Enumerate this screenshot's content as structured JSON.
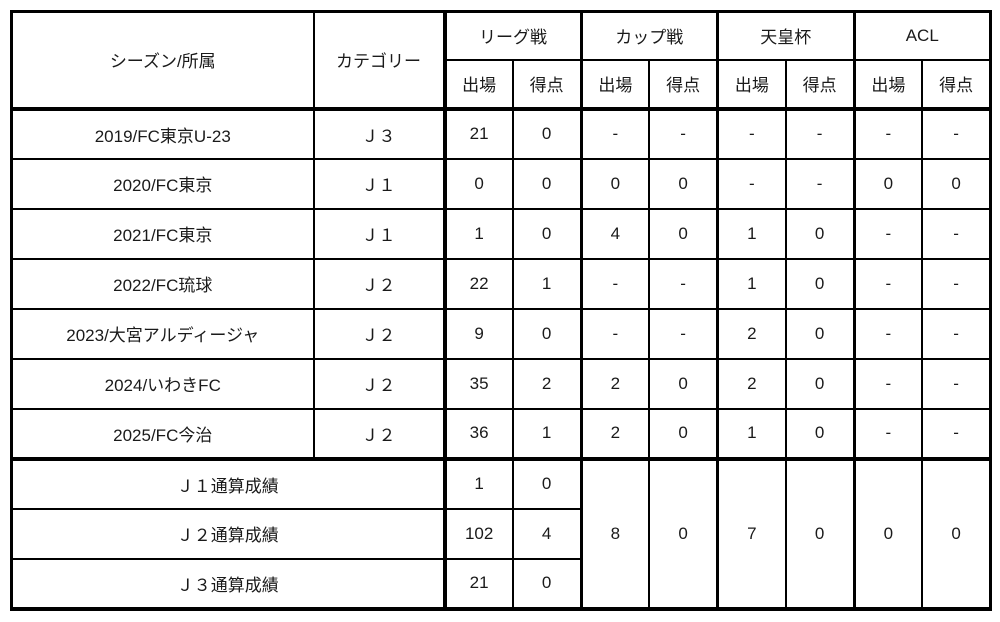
{
  "table": {
    "header": {
      "season_col": "シーズン/所属",
      "category_col": "カテゴリー",
      "groups": [
        "リーグ戦",
        "カップ戦",
        "天皇杯",
        "ACL"
      ],
      "apps": "出場",
      "goals": "得点"
    },
    "rows": [
      {
        "season": "2019/FC東京U-23",
        "category": "Ｊ３",
        "cells": [
          "21",
          "0",
          "-",
          "-",
          "-",
          "-",
          "-",
          "-"
        ]
      },
      {
        "season": "2020/FC東京",
        "category": "Ｊ１",
        "cells": [
          "0",
          "0",
          "0",
          "0",
          "-",
          "-",
          "0",
          "0"
        ]
      },
      {
        "season": "2021/FC東京",
        "category": "Ｊ１",
        "cells": [
          "1",
          "0",
          "4",
          "0",
          "1",
          "0",
          "-",
          "-"
        ]
      },
      {
        "season": "2022/FC琉球",
        "category": "Ｊ２",
        "cells": [
          "22",
          "1",
          "-",
          "-",
          "1",
          "0",
          "-",
          "-"
        ]
      },
      {
        "season": "2023/大宮アルディージャ",
        "category": "Ｊ２",
        "cells": [
          "9",
          "0",
          "-",
          "-",
          "2",
          "0",
          "-",
          "-"
        ]
      },
      {
        "season": "2024/いわきFC",
        "category": "Ｊ２",
        "cells": [
          "35",
          "2",
          "2",
          "0",
          "2",
          "0",
          "-",
          "-"
        ]
      },
      {
        "season": "2025/FC今治",
        "category": "Ｊ２",
        "cells": [
          "36",
          "1",
          "2",
          "0",
          "1",
          "0",
          "-",
          "-"
        ]
      }
    ],
    "totals": {
      "rows": [
        {
          "label": "Ｊ１通算成績",
          "apps": "1",
          "goals": "0"
        },
        {
          "label": "Ｊ２通算成績",
          "apps": "102",
          "goals": "4"
        },
        {
          "label": "Ｊ３通算成績",
          "apps": "21",
          "goals": "0"
        }
      ],
      "merged": [
        "8",
        "0",
        "7",
        "0",
        "0",
        "0"
      ]
    }
  }
}
